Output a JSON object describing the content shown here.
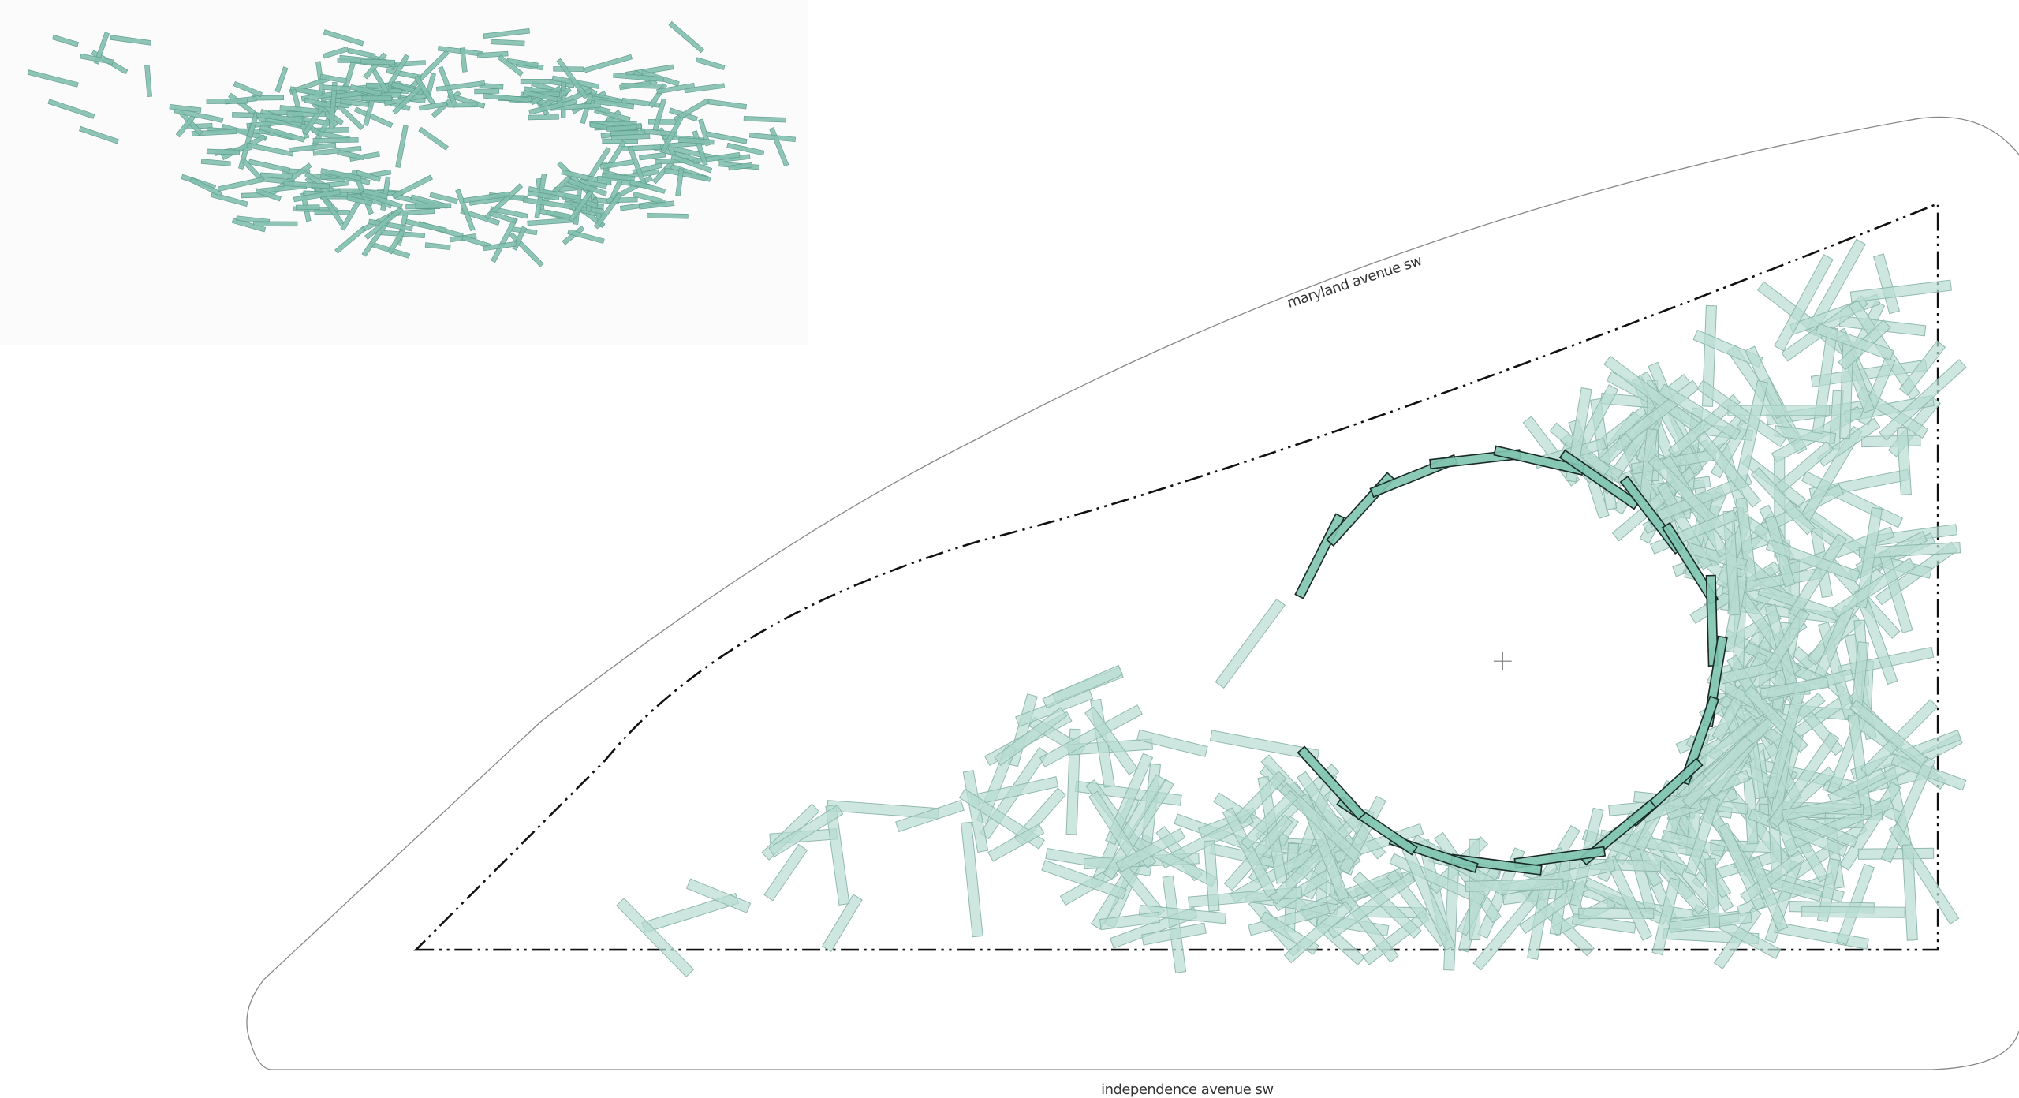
{
  "labels": {
    "top_street": "maryland avenue sw",
    "bottom_street": "independence avenue sw"
  }
}
